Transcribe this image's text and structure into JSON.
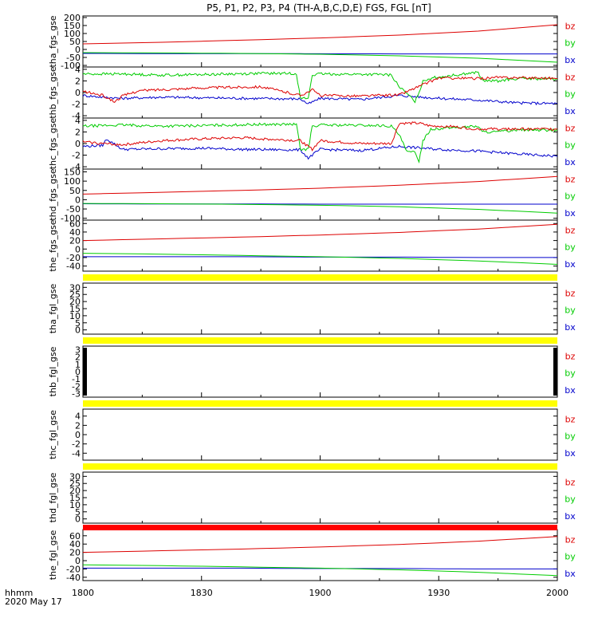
{
  "title": "P5, P1, P2, P3, P4 (TH-A,B,C,D,E) FGS, FGL [nT]",
  "x_axis": {
    "ticks": [
      {
        "label": "1800",
        "minute": 0
      },
      {
        "label": "1830",
        "minute": 30
      },
      {
        "label": "1900",
        "minute": 60
      },
      {
        "label": "1930",
        "minute": 90
      },
      {
        "label": "2000",
        "minute": 120
      }
    ],
    "unit_label": "hhmm",
    "date_label": "2020 May 17"
  },
  "legend": [
    {
      "name": "bz",
      "color": "#dd0000"
    },
    {
      "name": "by",
      "color": "#00cc00"
    },
    {
      "name": "bx",
      "color": "#0000cc"
    }
  ],
  "chart_data": [
    {
      "type": "line",
      "ylabel": "tha_fgs_gse",
      "ylim": [
        -110,
        210
      ],
      "ticks": [
        200,
        150,
        100,
        50,
        0,
        -50,
        -100
      ],
      "series": [
        {
          "name": "bz",
          "x": [
            0,
            20,
            40,
            60,
            80,
            100,
            120
          ],
          "values": [
            35,
            45,
            58,
            72,
            90,
            115,
            155
          ]
        },
        {
          "name": "by",
          "x": [
            0,
            20,
            40,
            60,
            80,
            100,
            120
          ],
          "values": [
            -20,
            -22,
            -25,
            -30,
            -40,
            -55,
            -80
          ]
        },
        {
          "name": "bx",
          "x": [
            0,
            20,
            40,
            60,
            80,
            100,
            120
          ],
          "values": [
            -25,
            -26,
            -26,
            -27,
            -28,
            -28,
            -28
          ]
        }
      ]
    },
    {
      "type": "line",
      "ylabel": "thb_fgs_gse",
      "ylim": [
        -4.4,
        4.4
      ],
      "ticks": [
        4,
        2,
        0,
        -2,
        -4
      ],
      "series": [
        {
          "name": "bz",
          "x": [
            0,
            5,
            8,
            10,
            14,
            20,
            30,
            45,
            55,
            58,
            60,
            70,
            80,
            90,
            92,
            100,
            105,
            118,
            120
          ],
          "values": [
            0.2,
            -0.5,
            -1.6,
            -0.6,
            0.3,
            0.5,
            0.8,
            1.0,
            -0.5,
            0.5,
            -0.5,
            -0.6,
            -0.4,
            2.5,
            2.5,
            2.4,
            2.6,
            2.5,
            2.4
          ]
        },
        {
          "name": "by",
          "x": [
            0,
            10,
            20,
            30,
            45,
            54,
            55,
            57,
            58,
            60,
            75,
            78,
            80,
            84,
            85,
            86,
            88,
            100,
            101,
            105,
            110,
            120
          ],
          "values": [
            3.2,
            3.2,
            3.0,
            3.1,
            3.3,
            3.3,
            -1.0,
            -1.0,
            3.0,
            3.2,
            3.1,
            3.0,
            1.0,
            -1.5,
            0.0,
            2.0,
            2.5,
            3.5,
            2.0,
            2.0,
            2.4,
            2.3
          ]
        },
        {
          "name": "bx",
          "x": [
            0,
            5,
            10,
            20,
            30,
            40,
            55,
            57,
            60,
            70,
            80,
            90,
            100,
            110,
            120
          ],
          "values": [
            -0.5,
            -0.8,
            -1.0,
            -0.8,
            -0.9,
            -1.0,
            -1.1,
            -2.0,
            -1.0,
            -1.2,
            -0.5,
            -1.0,
            -1.3,
            -1.8,
            -1.9
          ]
        }
      ]
    },
    {
      "type": "line",
      "ylabel": "thc_fgs_gse",
      "ylim": [
        -4.4,
        4.4
      ],
      "ticks": [
        4,
        2,
        0,
        -2,
        -4
      ],
      "series": [
        {
          "name": "bz",
          "x": [
            0,
            5,
            10,
            20,
            30,
            40,
            55,
            58,
            60,
            70,
            78,
            80,
            85,
            88,
            92,
            100,
            110,
            120
          ],
          "values": [
            0.3,
            0.0,
            -0.2,
            0.5,
            0.8,
            1.0,
            0.5,
            -1.0,
            0.5,
            0.0,
            0.0,
            3.5,
            3.5,
            3.0,
            3.0,
            2.5,
            2.5,
            2.5
          ]
        },
        {
          "name": "by",
          "x": [
            0,
            10,
            20,
            30,
            45,
            54,
            55,
            57,
            58,
            60,
            75,
            78,
            80,
            82,
            84,
            85,
            86,
            88,
            100,
            101,
            105,
            110,
            120
          ],
          "values": [
            3.0,
            3.2,
            3.0,
            3.1,
            3.3,
            3.3,
            -1.0,
            -1.0,
            3.0,
            3.2,
            3.1,
            3.0,
            1.5,
            -1.5,
            -1.5,
            -3.0,
            0.5,
            2.5,
            3.0,
            2.0,
            2.0,
            2.4,
            2.3
          ]
        },
        {
          "name": "bx",
          "x": [
            0,
            5,
            6,
            10,
            20,
            30,
            40,
            55,
            57,
            60,
            70,
            80,
            90,
            100,
            110,
            120
          ],
          "values": [
            -0.5,
            -0.3,
            0.8,
            -1.0,
            -0.9,
            -0.8,
            -1.0,
            -1.1,
            -2.5,
            -1.0,
            -1.2,
            -0.5,
            -1.0,
            -1.3,
            -1.8,
            -2.2
          ]
        }
      ]
    },
    {
      "type": "line",
      "ylabel": "thd_fgs_gse",
      "ylim": [
        -110,
        165
      ],
      "ticks": [
        150,
        100,
        50,
        0,
        -50,
        -100
      ],
      "series": [
        {
          "name": "bz",
          "x": [
            0,
            20,
            40,
            60,
            80,
            100,
            120
          ],
          "values": [
            30,
            40,
            50,
            62,
            78,
            98,
            125
          ]
        },
        {
          "name": "by",
          "x": [
            0,
            20,
            40,
            60,
            80,
            100,
            120
          ],
          "values": [
            -20,
            -22,
            -25,
            -30,
            -38,
            -52,
            -72
          ]
        },
        {
          "name": "bx",
          "x": [
            0,
            20,
            40,
            60,
            80,
            100,
            120
          ],
          "values": [
            -22,
            -23,
            -23,
            -24,
            -24,
            -24,
            -24
          ]
        }
      ]
    },
    {
      "type": "line",
      "ylabel": "the_fgs_gse",
      "ylim": [
        -52,
        68
      ],
      "ticks": [
        60,
        40,
        20,
        0,
        -20,
        -40
      ],
      "series": [
        {
          "name": "bz",
          "x": [
            0,
            20,
            40,
            60,
            80,
            100,
            120
          ],
          "values": [
            20,
            24,
            28,
            33,
            39,
            47,
            58
          ]
        },
        {
          "name": "by",
          "x": [
            0,
            20,
            40,
            60,
            80,
            100,
            120
          ],
          "values": [
            -10,
            -12,
            -15,
            -18,
            -22,
            -28,
            -36
          ]
        },
        {
          "name": "bx",
          "x": [
            0,
            20,
            40,
            60,
            80,
            100,
            120
          ],
          "values": [
            -18,
            -18,
            -18,
            -19,
            -19,
            -20,
            -20
          ]
        }
      ]
    },
    {
      "type": "line",
      "ylabel": "tha_fgl_gse",
      "ylim": [
        -3,
        33
      ],
      "ticks": [
        30,
        25,
        20,
        15,
        10,
        5,
        0
      ],
      "series": []
    },
    {
      "type": "line",
      "ylabel": "thb_fgl_gse",
      "ylim": [
        -3.5,
        3.5
      ],
      "ticks": [
        3,
        2,
        1,
        0,
        -1,
        -2,
        -3
      ],
      "series": []
    },
    {
      "type": "line",
      "ylabel": "thc_fgl_gse",
      "ylim": [
        -5.5,
        5.5
      ],
      "ticks": [
        4,
        2,
        0,
        -2,
        -4
      ],
      "series": []
    },
    {
      "type": "line",
      "ylabel": "thd_fgl_gse",
      "ylim": [
        -3,
        33
      ],
      "ticks": [
        30,
        25,
        20,
        15,
        10,
        5,
        0
      ],
      "series": []
    },
    {
      "type": "line",
      "ylabel": "the_fgl_gse",
      "ylim": [
        -48,
        75
      ],
      "ticks": [
        60,
        40,
        20,
        0,
        -20,
        -40
      ],
      "series": [
        {
          "name": "bz",
          "x": [
            0,
            20,
            40,
            60,
            80,
            100,
            120
          ],
          "values": [
            20,
            24,
            28,
            33,
            39,
            47,
            58
          ]
        },
        {
          "name": "by",
          "x": [
            0,
            20,
            40,
            60,
            80,
            100,
            120
          ],
          "values": [
            -10,
            -12,
            -15,
            -18,
            -22,
            -28,
            -36
          ]
        },
        {
          "name": "bx",
          "x": [
            0,
            20,
            40,
            60,
            80,
            100,
            120
          ],
          "values": [
            -18,
            -18,
            -18,
            -19,
            -19,
            -20,
            -20
          ]
        }
      ]
    }
  ],
  "status_bars": [
    {
      "after_panel": 4,
      "color": "#ffff00"
    },
    {
      "after_panel": 5,
      "color": "#ffff00"
    },
    {
      "after_panel": 6,
      "color": "#ffff00"
    },
    {
      "after_panel": 7,
      "color": "#ffff00"
    },
    {
      "after_panel": 8,
      "color": "#ff0000"
    }
  ]
}
